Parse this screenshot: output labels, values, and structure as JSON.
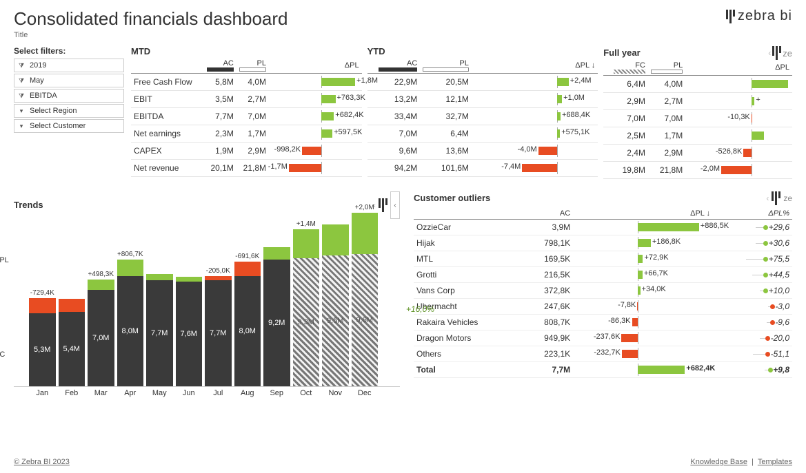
{
  "title": "Consolidated financials dashboard",
  "subtitle": "Title",
  "brand": "zebra bi",
  "copyright": "© Zebra BI 2023",
  "footer_links": {
    "kb": "Knowledge Base",
    "tpl": "Templates"
  },
  "colors": {
    "positive": "#8cc63f",
    "negative": "#e84c22",
    "bar_dark": "#3a3a3a",
    "hatch_light": "#bfbfbf",
    "text": "#333333",
    "grid": "#e5e5e5"
  },
  "filters": {
    "heading": "Select filters:",
    "items": [
      {
        "label": "2019",
        "icon": "filter"
      },
      {
        "label": "May",
        "icon": "filter"
      },
      {
        "label": "EBITDA",
        "icon": "filter"
      },
      {
        "label": "Select Region",
        "icon": "dropdown"
      },
      {
        "label": "Select Customer",
        "icon": "dropdown"
      }
    ]
  },
  "sections": {
    "mtd": {
      "title": "MTD",
      "cols": [
        "AC",
        "PL",
        "ΔPL"
      ],
      "col_styles": [
        "solid",
        "outline",
        ""
      ],
      "bar_range": 2.0,
      "rows": [
        {
          "name": "Free Cash Flow",
          "ac": "5,8M",
          "pl": "4,0M",
          "d_lbl": "+1,8M",
          "d_val": 1.8
        },
        {
          "name": "EBIT",
          "ac": "3,5M",
          "pl": "2,7M",
          "d_lbl": "+763,3K",
          "d_val": 0.76
        },
        {
          "name": "EBITDA",
          "ac": "7,7M",
          "pl": "7,0M",
          "d_lbl": "+682,4K",
          "d_val": 0.68
        },
        {
          "name": "Net earnings",
          "ac": "2,3M",
          "pl": "1,7M",
          "d_lbl": "+597,5K",
          "d_val": 0.6
        },
        {
          "name": "CAPEX",
          "ac": "1,9M",
          "pl": "2,9M",
          "d_lbl": "-998,2K",
          "d_val": -1.0
        },
        {
          "name": "Net revenue",
          "ac": "20,1M",
          "pl": "21,8M",
          "d_lbl": "-1,7M",
          "d_val": -1.7
        }
      ]
    },
    "ytd": {
      "title": "YTD",
      "cols": [
        "AC",
        "PL",
        "ΔPL ↓"
      ],
      "col_styles": [
        "solid",
        "outline",
        ""
      ],
      "bar_range": 8.0,
      "rows": [
        {
          "ac": "22,9M",
          "pl": "20,5M",
          "d_lbl": "+2,4M",
          "d_val": 2.4
        },
        {
          "ac": "13,2M",
          "pl": "12,1M",
          "d_lbl": "+1,0M",
          "d_val": 1.0
        },
        {
          "ac": "33,4M",
          "pl": "32,7M",
          "d_lbl": "+688,4K",
          "d_val": 0.69
        },
        {
          "ac": "7,0M",
          "pl": "6,4M",
          "d_lbl": "+575,1K",
          "d_val": 0.58
        },
        {
          "ac": "9,6M",
          "pl": "13,6M",
          "d_lbl": "-4,0M",
          "d_val": -4.0
        },
        {
          "ac": "94,2M",
          "pl": "101,6M",
          "d_lbl": "-7,4M",
          "d_val": -7.4
        }
      ]
    },
    "fy": {
      "title": "Full year",
      "cols": [
        "FC",
        "PL",
        "ΔPL"
      ],
      "col_styles": [
        "hatch",
        "outline",
        ""
      ],
      "bar_range": 2.5,
      "rows": [
        {
          "ac": "6,4M",
          "pl": "4,0M",
          "d_lbl": "",
          "d_val": 2.4
        },
        {
          "ac": "2,9M",
          "pl": "2,7M",
          "d_lbl": "+",
          "d_val": 0.2
        },
        {
          "ac": "7,0M",
          "pl": "7,0M",
          "d_lbl": "-10,3K",
          "d_val": -0.01
        },
        {
          "ac": "2,5M",
          "pl": "1,7M",
          "d_lbl": "",
          "d_val": 0.8
        },
        {
          "ac": "2,4M",
          "pl": "2,9M",
          "d_lbl": "-526,8K",
          "d_val": -0.53
        },
        {
          "ac": "19,8M",
          "pl": "21,8M",
          "d_lbl": "-2,0M",
          "d_val": -2.0
        }
      ]
    }
  },
  "trends": {
    "title": "Trends",
    "y_labels": {
      "delta": "ΔPL",
      "ac": "AC"
    },
    "max_value": 10.0,
    "callout": "+16,0%",
    "months": [
      {
        "m": "Jan",
        "ac": 5.3,
        "ac_lbl": "5,3M",
        "d": -0.73,
        "d_lbl": "-729,4K",
        "fc": false
      },
      {
        "m": "Feb",
        "ac": 5.4,
        "ac_lbl": "5,4M",
        "d": -0.65,
        "d_lbl": "",
        "fc": false
      },
      {
        "m": "Mar",
        "ac": 7.0,
        "ac_lbl": "7,0M",
        "d": 0.5,
        "d_lbl": "+498,3K",
        "fc": false
      },
      {
        "m": "Apr",
        "ac": 8.0,
        "ac_lbl": "8,0M",
        "d": 0.81,
        "d_lbl": "+806,7K",
        "fc": false
      },
      {
        "m": "May",
        "ac": 7.7,
        "ac_lbl": "7,7M",
        "d": 0.3,
        "d_lbl": "",
        "fc": false
      },
      {
        "m": "Jun",
        "ac": 7.6,
        "ac_lbl": "7,6M",
        "d": 0.25,
        "d_lbl": "",
        "fc": false
      },
      {
        "m": "Jul",
        "ac": 7.7,
        "ac_lbl": "7,7M",
        "d": -0.21,
        "d_lbl": "-205,0K",
        "fc": false
      },
      {
        "m": "Aug",
        "ac": 8.0,
        "ac_lbl": "8,0M",
        "d": -0.69,
        "d_lbl": "-691,6K",
        "fc": false
      },
      {
        "m": "Sep",
        "ac": 9.2,
        "ac_lbl": "9,2M",
        "d": 0.6,
        "d_lbl": "",
        "fc": false
      },
      {
        "m": "Oct",
        "ac": 9.3,
        "ac_lbl": "9,3M",
        "d": 1.4,
        "d_lbl": "+1,4M",
        "fc": true
      },
      {
        "m": "Nov",
        "ac": 9.5,
        "ac_lbl": "9,5M",
        "d": 1.5,
        "d_lbl": "",
        "fc": true
      },
      {
        "m": "Dec",
        "ac": 9.6,
        "ac_lbl": "9,6M",
        "d": 2.0,
        "d_lbl": "+2,0M",
        "fc": true
      }
    ]
  },
  "outliers": {
    "title": "Customer outliers",
    "cols": [
      "AC",
      "ΔPL ↓",
      "ΔPL%"
    ],
    "bar_range": 900,
    "pct_range": 80,
    "rows": [
      {
        "name": "OzzieCar",
        "ac": "3,9M",
        "d": "+886,5K",
        "dv": 886.5,
        "pct": "+29,6",
        "pv": 29.6
      },
      {
        "name": "Hijak",
        "ac": "798,1K",
        "d": "+186,8K",
        "dv": 186.8,
        "pct": "+30,6",
        "pv": 30.6
      },
      {
        "name": "MTL",
        "ac": "169,5K",
        "d": "+72,9K",
        "dv": 72.9,
        "pct": "+75,5",
        "pv": 75.5
      },
      {
        "name": "Grotti",
        "ac": "216,5K",
        "d": "+66,7K",
        "dv": 66.7,
        "pct": "+44,5",
        "pv": 44.5
      },
      {
        "name": "Vans Corp",
        "ac": "372,8K",
        "d": "+34,0K",
        "dv": 34.0,
        "pct": "+10,0",
        "pv": 10.0
      },
      {
        "name": "Ubermacht",
        "ac": "247,6K",
        "d": "-7,8K",
        "dv": -7.8,
        "pct": "-3,0",
        "pv": -3.0
      },
      {
        "name": "Rakaira Vehicles",
        "ac": "808,7K",
        "d": "-86,3K",
        "dv": -86.3,
        "pct": "-9,6",
        "pv": -9.6
      },
      {
        "name": "Dragon Motors",
        "ac": "949,9K",
        "d": "-237,6K",
        "dv": -237.6,
        "pct": "-20,0",
        "pv": -20.0
      },
      {
        "name": "Others",
        "ac": "223,1K",
        "d": "-232,7K",
        "dv": -232.7,
        "pct": "-51,1",
        "pv": -51.1
      }
    ],
    "total": {
      "name": "Total",
      "ac": "7,7M",
      "d": "+682,4K",
      "dv": 682.4,
      "pct": "+9,8",
      "pv": 9.8
    }
  }
}
